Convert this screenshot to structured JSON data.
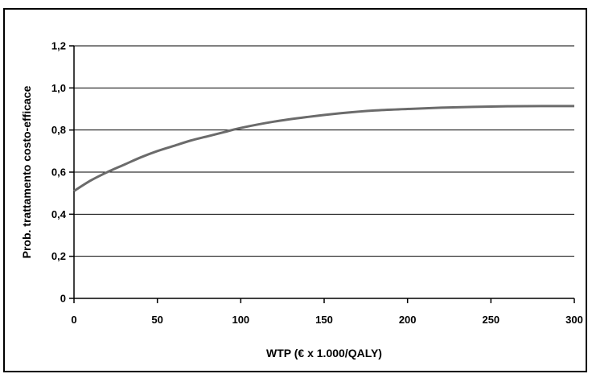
{
  "chart_data": {
    "type": "line",
    "xlabel": "WTP (€ x 1.000/QALY)",
    "ylabel": "Prob. trattamento costo-efficace",
    "xlim": [
      0,
      300
    ],
    "ylim": [
      0,
      1.2
    ],
    "x_ticks": [
      "0",
      "50",
      "100",
      "150",
      "200",
      "250",
      "300"
    ],
    "y_ticks": [
      "0",
      "0,2",
      "0,4",
      "0,6",
      "0,8",
      "1,0",
      "1,2"
    ],
    "grid": "horizontal",
    "colors": {
      "line": "#6b6b6b",
      "grid": "#000000",
      "axis": "#000000"
    },
    "series": [
      {
        "x": [
          0,
          10,
          20,
          30,
          40,
          50,
          60,
          70,
          80,
          90,
          100,
          120,
          140,
          160,
          180,
          200,
          220,
          240,
          260,
          280,
          300
        ],
        "values": [
          0.51,
          0.56,
          0.6,
          0.635,
          0.67,
          0.7,
          0.725,
          0.75,
          0.77,
          0.79,
          0.81,
          0.84,
          0.862,
          0.88,
          0.893,
          0.9,
          0.906,
          0.91,
          0.913,
          0.914,
          0.914
        ]
      }
    ]
  }
}
